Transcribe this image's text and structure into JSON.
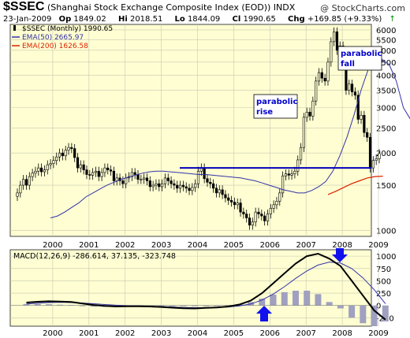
{
  "header": {
    "symbol": "$SSEC",
    "name": "(Shanghai Stock Exchange Composite Index (EOD))",
    "exchange": "INDX",
    "watermark": "@ StockCharts.com",
    "date": "23-Jan-2009",
    "open_label": "Op",
    "open": "1849.02",
    "high_label": "Hi",
    "high": "2018.51",
    "low_label": "Lo",
    "low": "1844.09",
    "close_label": "Cl",
    "close": "1990.65",
    "chg_label": "Chg",
    "chg": "+169.85 (+9.33%)",
    "up_arrow": "↑"
  },
  "colors": {
    "panel_bg": "#fefed2",
    "ema50": "#3333aa",
    "ema200": "#dd2200",
    "annot": "#0000cc"
  },
  "legend": [
    {
      "text": "$SSEC (Monthly) 1990.65",
      "color": "#000000",
      "icon": "candle"
    },
    {
      "text": "EMA(50) 2665.97",
      "color": "#3333aa",
      "icon": "line"
    },
    {
      "text": "EMA(200) 1626.58",
      "color": "#dd2200",
      "icon": "line"
    }
  ],
  "annotations": [
    {
      "line1": "parabolic",
      "line2": "rise"
    },
    {
      "line1": "parabolic",
      "line2": "fall"
    }
  ],
  "macd_label": {
    "title": "MACD(12,26,9)",
    "macd": "-286.614",
    "signal": "37.135",
    "hist": "-323.748"
  },
  "chart_data": {
    "type": "candlestick",
    "scale": "log",
    "ylim": [
      950,
      6300
    ],
    "yticks": [
      1000,
      1500,
      2000,
      2500,
      3000,
      3500,
      4000,
      4500,
      5000,
      5500,
      6000
    ],
    "xticks": [
      "2000",
      "2001",
      "2002",
      "2003",
      "2004",
      "2005",
      "2006",
      "2007",
      "2008",
      "2009"
    ],
    "support_line": {
      "value": 1750,
      "from": "2003-08",
      "to": "2009-02"
    },
    "closes": [
      1400,
      1500,
      1580,
      1500,
      1620,
      1670,
      1700,
      1750,
      1690,
      1720,
      1800,
      1820,
      1870,
      1930,
      2000,
      1950,
      2050,
      2100,
      2080,
      1920,
      1750,
      1800,
      1720,
      1650,
      1640,
      1680,
      1700,
      1620,
      1680,
      1750,
      1720,
      1700,
      1560,
      1600,
      1560,
      1520,
      1600,
      1620,
      1680,
      1650,
      1580,
      1580,
      1600,
      1560,
      1480,
      1500,
      1520,
      1480,
      1520,
      1600,
      1560,
      1520,
      1500,
      1460,
      1500,
      1480,
      1460,
      1430,
      1470,
      1520,
      1700,
      1750,
      1590,
      1540,
      1520,
      1460,
      1400,
      1440,
      1380,
      1340,
      1310,
      1290,
      1260,
      1280,
      1180,
      1160,
      1120,
      1050,
      1080,
      1180,
      1160,
      1140,
      1090,
      1160,
      1220,
      1260,
      1300,
      1400,
      1630,
      1660,
      1640,
      1660,
      1700,
      1880,
      2100,
      2750,
      2880,
      2780,
      3180,
      3800,
      4100,
      3900,
      3800,
      4500,
      5400,
      5900,
      5000,
      5200,
      4400,
      3500,
      3700,
      3450,
      3350,
      2700,
      2800,
      2400,
      2300,
      1750,
      1870,
      1900,
      1990
    ],
    "ema50_approx": [
      1120,
      1140,
      1180,
      1230,
      1280,
      1350,
      1400,
      1450,
      1500,
      1540,
      1580,
      1610,
      1640,
      1670,
      1690,
      1700,
      1700,
      1690,
      1680,
      1670,
      1660,
      1650,
      1650,
      1640,
      1630,
      1620,
      1610,
      1600,
      1580,
      1560,
      1530,
      1500,
      1470,
      1440,
      1420,
      1400,
      1400,
      1430,
      1480,
      1550,
      1700,
      1950,
      2300,
      2800,
      3500,
      4200,
      4550,
      4600,
      4400,
      3800,
      3000,
      2700,
      2666
    ],
    "ema200_approx": [
      1380,
      1420,
      1470,
      1520,
      1560,
      1600,
      1620,
      1626
    ],
    "macd": {
      "ylim": [
        -420,
        1130
      ],
      "yticks": [
        -250,
        0,
        250,
        500,
        750,
        1000
      ],
      "macd_approx": [
        60,
        75,
        85,
        80,
        70,
        40,
        10,
        -10,
        -20,
        -15,
        -15,
        -20,
        -30,
        -45,
        -55,
        -60,
        -50,
        -40,
        -20,
        20,
        100,
        250,
        450,
        650,
        850,
        1000,
        1050,
        950,
        800,
        500,
        200,
        -100,
        -287
      ],
      "signal_approx": [
        30,
        45,
        60,
        65,
        60,
        50,
        35,
        20,
        5,
        -5,
        -10,
        -15,
        -20,
        -30,
        -40,
        -45,
        -45,
        -40,
        -30,
        -10,
        30,
        110,
        230,
        380,
        550,
        700,
        820,
        880,
        860,
        750,
        560,
        320,
        37
      ]
    }
  }
}
